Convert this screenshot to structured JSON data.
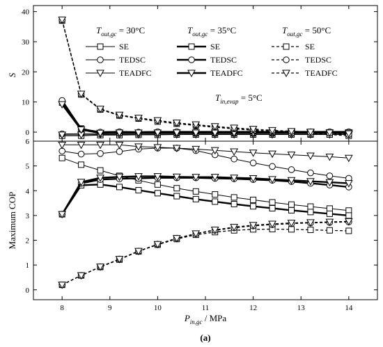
{
  "figure": {
    "caption": "(a)",
    "annotation": {
      "main": "T",
      "sub": "in,evap",
      "rest": " = 5°C"
    }
  },
  "chart_data": [
    {
      "type": "line",
      "panel": "top",
      "ylabel": "S",
      "ylim": [
        -3,
        42
      ],
      "yticks": [
        0,
        10,
        20,
        30,
        40
      ],
      "x": [
        8,
        8.4,
        8.8,
        9.2,
        9.6,
        10,
        10.4,
        10.8,
        11.2,
        11.6,
        12,
        12.4,
        12.8,
        13.2,
        13.6,
        14
      ],
      "series": [
        {
          "name": "SE",
          "group": "30",
          "values": [
            -1.2,
            -1.2,
            -1.0,
            -1.0,
            -0.9,
            -0.9,
            -0.8,
            -0.8,
            -0.8,
            -0.8,
            -0.8,
            -0.8,
            -0.8,
            -0.8,
            -0.8,
            -0.8
          ]
        },
        {
          "name": "TEDSC",
          "group": "30",
          "values": [
            -0.6,
            -0.5,
            -0.5,
            -0.5,
            -0.5,
            -0.5,
            -0.5,
            -0.5,
            -0.5,
            -0.5,
            -0.5,
            -0.5,
            -0.5,
            -0.5,
            -0.5,
            -0.5
          ]
        },
        {
          "name": "TEADFC",
          "group": "30",
          "values": [
            -0.9,
            -0.9,
            -0.8,
            -0.8,
            -0.8,
            -0.8,
            -0.8,
            -0.8,
            -0.8,
            -0.8,
            -0.8,
            -0.8,
            -0.8,
            -0.8,
            -0.8,
            -0.8
          ]
        },
        {
          "name": "SE",
          "group": "35",
          "values": [
            9.8,
            1.2,
            -0.4,
            -0.2,
            -0.3,
            -0.2,
            -0.1,
            -0.1,
            -0.1,
            -0.1,
            -0.1,
            -0.1,
            -0.1,
            -0.1,
            -0.1,
            -0.1
          ]
        },
        {
          "name": "TEDSC",
          "group": "35",
          "values": [
            10.5,
            1.0,
            0.0,
            0.1,
            0.0,
            0.1,
            0.1,
            0.1,
            0.1,
            0.1,
            0.1,
            0.1,
            0.1,
            0.1,
            0.1,
            0.1
          ]
        },
        {
          "name": "TEADFC",
          "group": "35",
          "values": [
            9.2,
            0.8,
            -0.3,
            -0.2,
            -0.2,
            -0.2,
            -0.2,
            -0.2,
            -0.2,
            -0.2,
            -0.2,
            -0.2,
            -0.2,
            -0.2,
            -0.2,
            -0.2
          ]
        },
        {
          "name": "SE",
          "group": "50",
          "values": [
            37,
            12.5,
            7.5,
            5.5,
            4.5,
            3.5,
            2.8,
            2.2,
            1.6,
            1.1,
            0.6,
            0.2,
            -0.2,
            -0.5,
            -0.8,
            -1.2
          ]
        },
        {
          "name": "TEDSC",
          "group": "50",
          "values": [
            37.2,
            12.6,
            7.6,
            5.6,
            4.6,
            3.8,
            3.0,
            2.4,
            1.8,
            1.3,
            0.9,
            0.5,
            0.2,
            -0.1,
            -0.4,
            -0.8
          ]
        },
        {
          "name": "TEADFC",
          "group": "50",
          "values": [
            37.3,
            12.7,
            7.7,
            5.7,
            4.7,
            3.9,
            3.1,
            2.5,
            1.9,
            1.4,
            1.0,
            0.6,
            0.3,
            0.1,
            -0.2,
            -0.5
          ]
        }
      ]
    },
    {
      "type": "line",
      "panel": "bottom",
      "xlabel_main": "P",
      "xlabel_sub": "in,gc",
      "xlabel_rest": " / MPa",
      "ylabel": "Maximum COP",
      "xlim": [
        7.4,
        14.6
      ],
      "xticks": [
        8,
        9,
        10,
        11,
        12,
        13,
        14
      ],
      "ylim": [
        -0.4,
        6
      ],
      "yticks": [
        0,
        1,
        2,
        3,
        4,
        5,
        6
      ],
      "x": [
        8,
        8.4,
        8.8,
        9.2,
        9.6,
        10,
        10.4,
        10.8,
        11.2,
        11.6,
        12,
        12.4,
        12.8,
        13.2,
        13.6,
        14
      ],
      "series": [
        {
          "name": "SE",
          "group": "30",
          "values": [
            5.32,
            5.05,
            4.82,
            4.6,
            4.42,
            4.25,
            4.1,
            3.97,
            3.85,
            3.73,
            3.63,
            3.53,
            3.44,
            3.36,
            3.28,
            3.2
          ]
        },
        {
          "name": "TEDSC",
          "group": "30",
          "values": [
            5.6,
            5.48,
            5.5,
            5.58,
            5.68,
            5.72,
            5.72,
            5.62,
            5.45,
            5.28,
            5.12,
            4.98,
            4.85,
            4.72,
            4.6,
            4.5
          ]
        },
        {
          "name": "TEADFC",
          "group": "30",
          "values": [
            5.85,
            5.85,
            5.85,
            5.85,
            5.78,
            5.75,
            5.72,
            5.68,
            5.63,
            5.58,
            5.53,
            5.49,
            5.45,
            5.41,
            5.37,
            5.32
          ]
        },
        {
          "name": "SE",
          "group": "35",
          "values": [
            3.05,
            4.22,
            4.25,
            4.15,
            4.02,
            3.9,
            3.78,
            3.66,
            3.56,
            3.46,
            3.37,
            3.29,
            3.21,
            3.14,
            3.07,
            3.0
          ]
        },
        {
          "name": "TEDSC",
          "group": "35",
          "values": [
            3.05,
            4.3,
            4.45,
            4.48,
            4.5,
            4.52,
            4.52,
            4.52,
            4.5,
            4.48,
            4.45,
            4.42,
            4.37,
            4.3,
            4.23,
            4.15
          ]
        },
        {
          "name": "TEADFC",
          "group": "35",
          "values": [
            3.05,
            4.35,
            4.52,
            4.56,
            4.58,
            4.58,
            4.56,
            4.55,
            4.55,
            4.52,
            4.5,
            4.46,
            4.42,
            4.38,
            4.34,
            4.3
          ]
        },
        {
          "name": "SE",
          "group": "50",
          "values": [
            0.2,
            0.58,
            0.92,
            1.22,
            1.55,
            1.82,
            2.05,
            2.22,
            2.33,
            2.4,
            2.44,
            2.45,
            2.44,
            2.42,
            2.4,
            2.38
          ]
        },
        {
          "name": "TEDSC",
          "group": "50",
          "values": [
            0.2,
            0.58,
            0.93,
            1.24,
            1.56,
            1.84,
            2.08,
            2.26,
            2.4,
            2.5,
            2.58,
            2.63,
            2.67,
            2.7,
            2.72,
            2.74
          ]
        },
        {
          "name": "TEADFC",
          "group": "50",
          "values": [
            0.2,
            0.58,
            0.93,
            1.24,
            1.56,
            1.84,
            2.08,
            2.27,
            2.42,
            2.53,
            2.61,
            2.66,
            2.7,
            2.72,
            2.74,
            2.76
          ]
        }
      ]
    }
  ],
  "legend": {
    "columns": [
      {
        "group": "30",
        "header_main": "T",
        "header_sub": "out,gc",
        "header_rest": " = 30°C",
        "line_style": "thin-solid"
      },
      {
        "group": "35",
        "header_main": "T",
        "header_sub": "out,gc",
        "header_rest": " = 35°C",
        "line_style": "thick-solid"
      },
      {
        "group": "50",
        "header_main": "T",
        "header_sub": "out,gc",
        "header_rest": " = 50°C",
        "line_style": "dashed"
      }
    ],
    "entries": [
      {
        "label": "SE",
        "marker": "square"
      },
      {
        "label": "TEDSC",
        "marker": "circle"
      },
      {
        "label": "TEADFC",
        "marker": "triangle"
      }
    ]
  }
}
